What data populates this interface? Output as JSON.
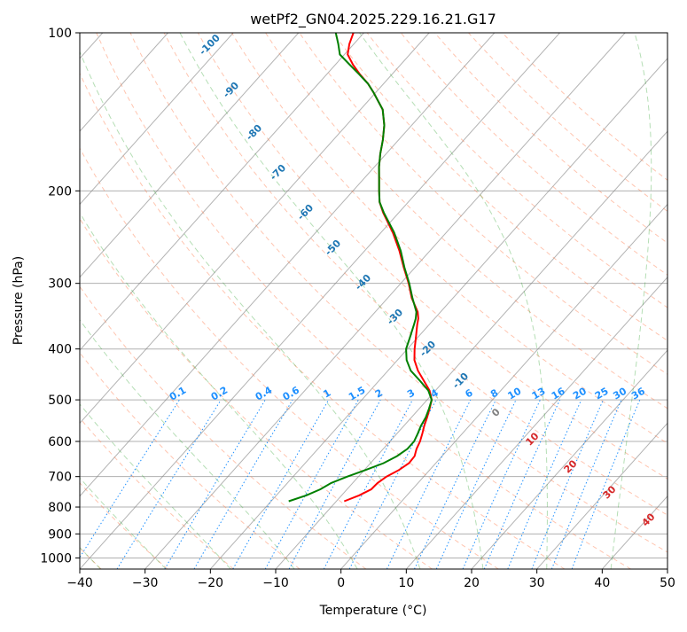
{
  "chart_data": {
    "type": "line",
    "subtype": "skew-T log-P diagram",
    "title": "wetPf2_GN04.2025.229.16.21.G17",
    "xlabel": "Temperature (°C)",
    "ylabel": "Pressure (hPa)",
    "xlim": [
      -40,
      50
    ],
    "ylim": [
      1050,
      100
    ],
    "y_scale": "log",
    "x_ticks": [
      -40,
      -30,
      -20,
      -10,
      0,
      10,
      20,
      30,
      40,
      50
    ],
    "y_ticks": [
      100,
      200,
      300,
      400,
      500,
      600,
      700,
      800,
      900,
      1000
    ],
    "grid": true,
    "series": [
      {
        "color": "#ff0000",
        "pressure": [
          780,
          760,
          740,
          720,
          700,
          680,
          660,
          640,
          620,
          600,
          580,
          560,
          540,
          520,
          500,
          480,
          460,
          440,
          420,
          400,
          380,
          360,
          350,
          340,
          320,
          300,
          280,
          260,
          240,
          220,
          210,
          200,
          190,
          180,
          170,
          160,
          150,
          140,
          130,
          125,
          120,
          115,
          110,
          105,
          100
        ],
        "values": [
          -8.8,
          -7.3,
          -6.3,
          -6.2,
          -5.7,
          -4.7,
          -4.1,
          -4.2,
          -4.9,
          -5.4,
          -6.1,
          -6.9,
          -7.6,
          -8.4,
          -9.3,
          -10.9,
          -13.1,
          -15.4,
          -17.4,
          -18.9,
          -20.3,
          -21.8,
          -22.5,
          -23.5,
          -26.3,
          -28.8,
          -31.7,
          -34.7,
          -38.2,
          -42.4,
          -44.4,
          -46.0,
          -47.6,
          -49.3,
          -50.9,
          -52.4,
          -54.2,
          -56.6,
          -60.3,
          -62.4,
          -64.9,
          -67.3,
          -69.5,
          -70.7,
          -71.6
        ]
      },
      {
        "color": "#008000",
        "pressure": [
          780,
          760,
          740,
          720,
          700,
          680,
          660,
          640,
          620,
          600,
          580,
          560,
          540,
          520,
          500,
          480,
          460,
          440,
          420,
          400,
          380,
          360,
          350,
          340,
          320,
          300,
          280,
          260,
          240,
          220,
          210,
          200,
          190,
          180,
          170,
          160,
          150,
          140,
          130,
          125,
          120,
          115,
          110,
          105,
          100
        ],
        "values": [
          -17.3,
          -15.4,
          -14.1,
          -13.3,
          -11.7,
          -9.8,
          -8.0,
          -6.9,
          -6.3,
          -6.3,
          -6.8,
          -7.4,
          -7.8,
          -8.5,
          -9.3,
          -11.1,
          -13.7,
          -16.5,
          -18.6,
          -20.2,
          -21.2,
          -22.3,
          -22.9,
          -23.7,
          -26.2,
          -28.7,
          -31.6,
          -34.5,
          -38.0,
          -42.3,
          -44.4,
          -46.0,
          -47.6,
          -49.3,
          -50.9,
          -52.4,
          -54.2,
          -56.6,
          -60.3,
          -62.4,
          -65.0,
          -67.8,
          -70.7,
          -72.4,
          -74.3
        ]
      }
    ],
    "dry_adiabats": [
      -100,
      -90,
      -80,
      -70,
      -60,
      -50,
      -40,
      -30,
      -20,
      -10,
      0,
      10,
      20,
      30,
      40,
      50,
      60,
      70,
      80,
      90,
      100,
      110,
      120,
      130,
      140,
      150,
      160
    ],
    "dry_adiabat_labels": [
      "-100",
      "-90",
      "-80",
      "-70",
      "-60",
      "-50",
      "-40",
      "-30",
      "-20",
      "-10"
    ],
    "moist_adiabats": [
      -40,
      -30,
      -20,
      -10,
      0,
      10,
      20,
      30,
      40,
      50
    ],
    "moist_adiabat_labels": [
      "10",
      "20",
      "30",
      "40"
    ],
    "moist_adiabat_zero_label": "0",
    "mixing_ratios": [
      "0.1",
      "0.2",
      "0.4",
      "0.6",
      "1",
      "1.5",
      "2",
      "3",
      "4",
      "6",
      "8",
      "10",
      "13",
      "16",
      "20",
      "25",
      "30",
      "36"
    ],
    "mixing_ratio_values": [
      0.1,
      0.2,
      0.4,
      0.6,
      1,
      1.5,
      2,
      3,
      4,
      6,
      8,
      10,
      13,
      16,
      20,
      25,
      30,
      36
    ],
    "colors": {
      "temperature": "#ff0000",
      "dewpoint": "#008000",
      "dry_adiabat": "#ff7f50",
      "moist_adiabat": "#2ca02c",
      "mixing_ratio": "#1e90ff",
      "isotherm": "#808080"
    }
  }
}
